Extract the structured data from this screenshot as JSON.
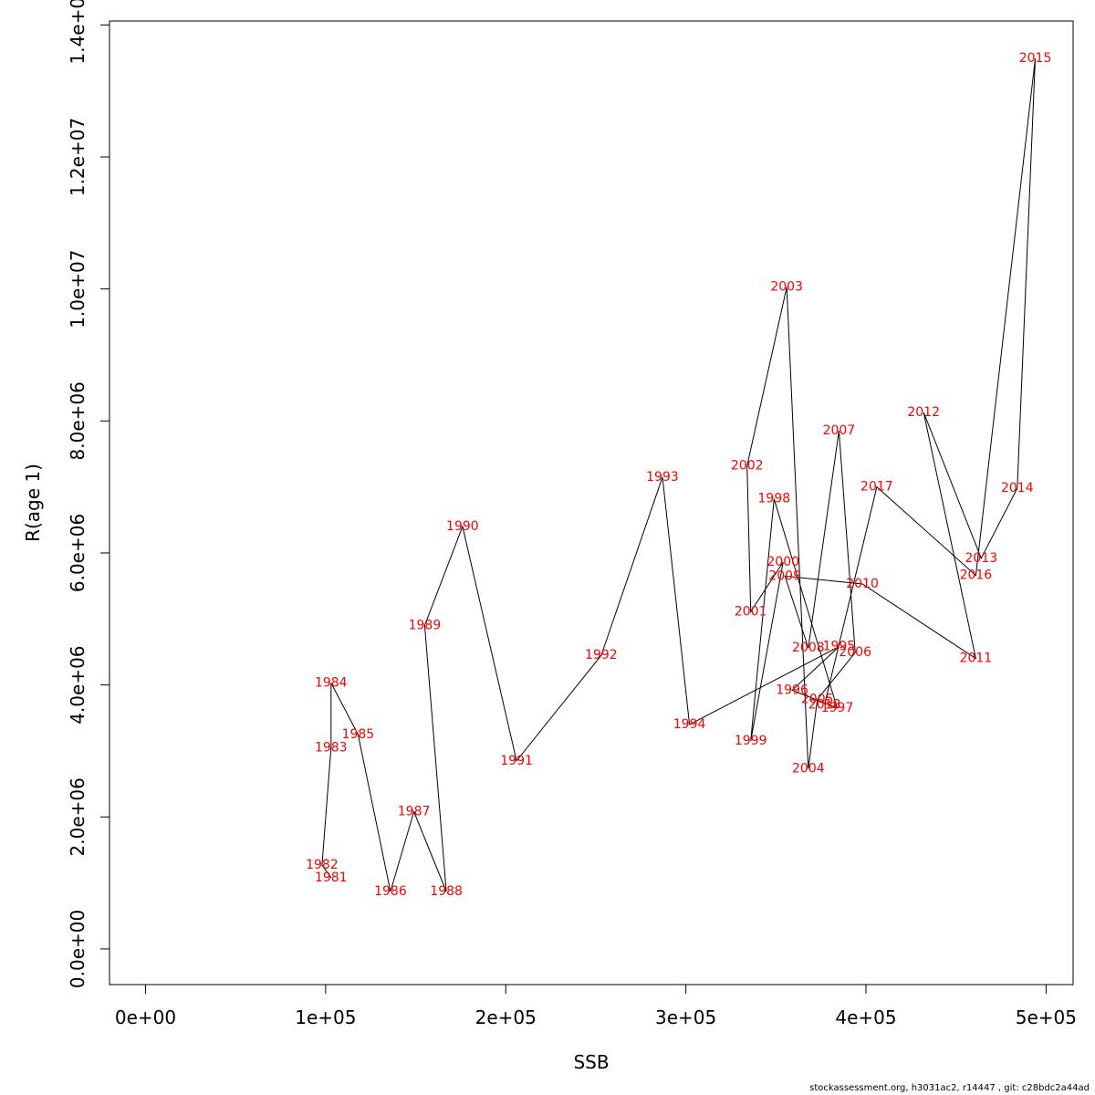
{
  "chart_data": {
    "type": "line",
    "xlabel": "SSB",
    "ylabel": "R(age 1)",
    "xlim": [
      -20000,
      515000
    ],
    "ylim": [
      -540000,
      14060000
    ],
    "x_ticks": [
      0,
      100000,
      200000,
      300000,
      400000,
      500000
    ],
    "x_tick_labels": [
      "0e+00",
      "1e+05",
      "2e+05",
      "3e+05",
      "4e+05",
      "5e+05"
    ],
    "y_ticks": [
      0,
      2000000,
      4000000,
      6000000,
      8000000,
      10000000,
      12000000,
      14000000
    ],
    "y_tick_labels": [
      "0.0e+00",
      "2.0e+06",
      "4.0e+06",
      "6.0e+06",
      "8.0e+06",
      "1.0e+07",
      "1.2e+07",
      "1.4e+07"
    ],
    "line_color": "#000000",
    "label_color": "#ff0000",
    "points": [
      {
        "label": "1981",
        "x": 103000,
        "y": 1080000
      },
      {
        "label": "1982",
        "x": 98000,
        "y": 1270000
      },
      {
        "label": "1983",
        "x": 103000,
        "y": 3050000
      },
      {
        "label": "1984",
        "x": 103000,
        "y": 4030000
      },
      {
        "label": "1985",
        "x": 118000,
        "y": 3250000
      },
      {
        "label": "1986",
        "x": 136000,
        "y": 870000
      },
      {
        "label": "1987",
        "x": 149000,
        "y": 2080000
      },
      {
        "label": "1988",
        "x": 167000,
        "y": 870000
      },
      {
        "label": "1989",
        "x": 155000,
        "y": 4900000
      },
      {
        "label": "1990",
        "x": 176000,
        "y": 6400000
      },
      {
        "label": "1991",
        "x": 206000,
        "y": 2850000
      },
      {
        "label": "1992",
        "x": 253000,
        "y": 4450000
      },
      {
        "label": "1993",
        "x": 287000,
        "y": 7150000
      },
      {
        "label": "1994",
        "x": 302000,
        "y": 3400000
      },
      {
        "label": "1995",
        "x": 385000,
        "y": 4580000
      },
      {
        "label": "1996",
        "x": 359000,
        "y": 3920000
      },
      {
        "label": "1997",
        "x": 384000,
        "y": 3650000
      },
      {
        "label": "1998",
        "x": 349000,
        "y": 6820000
      },
      {
        "label": "1999",
        "x": 336000,
        "y": 3150000
      },
      {
        "label": "2000",
        "x": 354000,
        "y": 5860000
      },
      {
        "label": "2001",
        "x": 336000,
        "y": 5110000
      },
      {
        "label": "2002",
        "x": 334000,
        "y": 7320000
      },
      {
        "label": "2003",
        "x": 356000,
        "y": 10030000
      },
      {
        "label": "2004",
        "x": 368000,
        "y": 2730000
      },
      {
        "label": "2005",
        "x": 373000,
        "y": 3780000
      },
      {
        "label": "2006",
        "x": 394000,
        "y": 4490000
      },
      {
        "label": "2007",
        "x": 385000,
        "y": 7850000
      },
      {
        "label": "2008",
        "x": 368000,
        "y": 4560000
      },
      {
        "label": "2009",
        "x": 355000,
        "y": 5650000
      },
      {
        "label": "2010",
        "x": 398000,
        "y": 5530000
      },
      {
        "label": "2011",
        "x": 461000,
        "y": 4400000
      },
      {
        "label": "2012",
        "x": 432000,
        "y": 8130000
      },
      {
        "label": "2013",
        "x": 464000,
        "y": 5920000
      },
      {
        "label": "2014",
        "x": 484000,
        "y": 6980000
      },
      {
        "label": "2015",
        "x": 494000,
        "y": 13490000
      },
      {
        "label": "2016",
        "x": 461000,
        "y": 5660000
      },
      {
        "label": "2017",
        "x": 406000,
        "y": 7000000
      },
      {
        "label": "2018",
        "x": 377000,
        "y": 3700000
      }
    ]
  },
  "footer": "stockassessment.org, h3031ac2, r14447 , git: c28bdc2a44ad"
}
